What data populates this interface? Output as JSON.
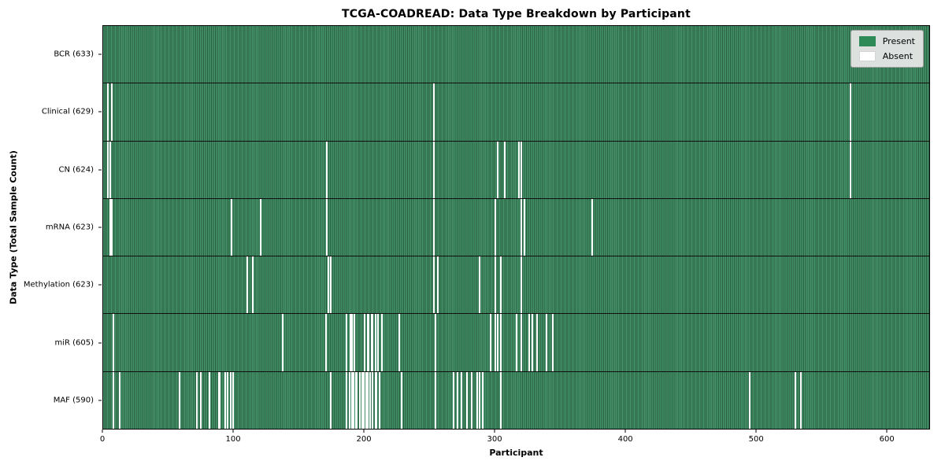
{
  "chart_data": {
    "type": "heatmap",
    "title": "TCGA-COADREAD: Data Type Breakdown by Participant",
    "xlabel": "Participant",
    "ylabel": "Data Type (Total Sample Count)",
    "total_participants": 633,
    "x_ticks": [
      0,
      100,
      200,
      300,
      400,
      500,
      600
    ],
    "xlim": [
      0,
      633
    ],
    "grid": false,
    "legend": {
      "position": "upper right",
      "present_label": "Present",
      "absent_label": "Absent"
    },
    "colors": {
      "present": "#2e8b57",
      "present_stripe_light": "#44916a",
      "present_stripe_dark": "#27603f",
      "absent": "#ffffff",
      "row_separator": "#0f0f0f"
    },
    "rows": [
      {
        "name": "BCR",
        "count": 633,
        "absent_participants": []
      },
      {
        "name": "Clinical",
        "count": 629,
        "absent_participants": [
          3,
          6,
          253,
          572
        ]
      },
      {
        "name": "CN",
        "count": 624,
        "absent_participants": [
          3,
          5,
          171,
          253,
          302,
          307,
          318,
          320,
          572
        ]
      },
      {
        "name": "mRNA",
        "count": 623,
        "absent_participants": [
          5,
          6,
          98,
          120,
          171,
          253,
          300,
          320,
          322,
          374
        ]
      },
      {
        "name": "Methylation",
        "count": 623,
        "absent_participants": [
          110,
          114,
          172,
          174,
          253,
          256,
          288,
          300,
          304,
          320
        ]
      },
      {
        "name": "miR",
        "count": 605,
        "absent_participants": [
          7,
          137,
          170,
          186,
          189,
          190,
          192,
          200,
          202,
          203,
          205,
          206,
          208,
          210,
          213,
          226,
          254,
          296,
          300,
          302,
          304,
          316,
          320,
          326,
          328,
          332,
          339,
          344
        ]
      },
      {
        "name": "MAF",
        "count": 590,
        "absent_participants": [
          7,
          12,
          58,
          71,
          74,
          81,
          88,
          89,
          93,
          95,
          97,
          99,
          174,
          186,
          188,
          190,
          191,
          193,
          194,
          196,
          198,
          199,
          201,
          202,
          204,
          206,
          208,
          209,
          211,
          228,
          254,
          268,
          271,
          274,
          278,
          282,
          286,
          288,
          290,
          304,
          495,
          530,
          534
        ]
      }
    ]
  }
}
